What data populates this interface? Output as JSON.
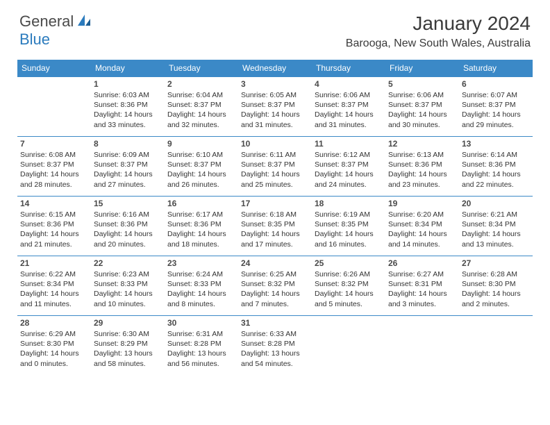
{
  "logo": {
    "general": "General",
    "blue": "Blue"
  },
  "title": "January 2024",
  "location": "Barooga, New South Wales, Australia",
  "header_bg": "#3b89c7",
  "header_fg": "#ffffff",
  "border_color": "#3b89c7",
  "daynum_color": "#4a4a4a",
  "text_color": "#333333",
  "weekdays": [
    "Sunday",
    "Monday",
    "Tuesday",
    "Wednesday",
    "Thursday",
    "Friday",
    "Saturday"
  ],
  "weeks": [
    [
      null,
      {
        "n": "1",
        "sr": "6:03 AM",
        "ss": "8:36 PM",
        "dl": "14 hours and 33 minutes."
      },
      {
        "n": "2",
        "sr": "6:04 AM",
        "ss": "8:37 PM",
        "dl": "14 hours and 32 minutes."
      },
      {
        "n": "3",
        "sr": "6:05 AM",
        "ss": "8:37 PM",
        "dl": "14 hours and 31 minutes."
      },
      {
        "n": "4",
        "sr": "6:06 AM",
        "ss": "8:37 PM",
        "dl": "14 hours and 31 minutes."
      },
      {
        "n": "5",
        "sr": "6:06 AM",
        "ss": "8:37 PM",
        "dl": "14 hours and 30 minutes."
      },
      {
        "n": "6",
        "sr": "6:07 AM",
        "ss": "8:37 PM",
        "dl": "14 hours and 29 minutes."
      }
    ],
    [
      {
        "n": "7",
        "sr": "6:08 AM",
        "ss": "8:37 PM",
        "dl": "14 hours and 28 minutes."
      },
      {
        "n": "8",
        "sr": "6:09 AM",
        "ss": "8:37 PM",
        "dl": "14 hours and 27 minutes."
      },
      {
        "n": "9",
        "sr": "6:10 AM",
        "ss": "8:37 PM",
        "dl": "14 hours and 26 minutes."
      },
      {
        "n": "10",
        "sr": "6:11 AM",
        "ss": "8:37 PM",
        "dl": "14 hours and 25 minutes."
      },
      {
        "n": "11",
        "sr": "6:12 AM",
        "ss": "8:37 PM",
        "dl": "14 hours and 24 minutes."
      },
      {
        "n": "12",
        "sr": "6:13 AM",
        "ss": "8:36 PM",
        "dl": "14 hours and 23 minutes."
      },
      {
        "n": "13",
        "sr": "6:14 AM",
        "ss": "8:36 PM",
        "dl": "14 hours and 22 minutes."
      }
    ],
    [
      {
        "n": "14",
        "sr": "6:15 AM",
        "ss": "8:36 PM",
        "dl": "14 hours and 21 minutes."
      },
      {
        "n": "15",
        "sr": "6:16 AM",
        "ss": "8:36 PM",
        "dl": "14 hours and 20 minutes."
      },
      {
        "n": "16",
        "sr": "6:17 AM",
        "ss": "8:36 PM",
        "dl": "14 hours and 18 minutes."
      },
      {
        "n": "17",
        "sr": "6:18 AM",
        "ss": "8:35 PM",
        "dl": "14 hours and 17 minutes."
      },
      {
        "n": "18",
        "sr": "6:19 AM",
        "ss": "8:35 PM",
        "dl": "14 hours and 16 minutes."
      },
      {
        "n": "19",
        "sr": "6:20 AM",
        "ss": "8:34 PM",
        "dl": "14 hours and 14 minutes."
      },
      {
        "n": "20",
        "sr": "6:21 AM",
        "ss": "8:34 PM",
        "dl": "14 hours and 13 minutes."
      }
    ],
    [
      {
        "n": "21",
        "sr": "6:22 AM",
        "ss": "8:34 PM",
        "dl": "14 hours and 11 minutes."
      },
      {
        "n": "22",
        "sr": "6:23 AM",
        "ss": "8:33 PM",
        "dl": "14 hours and 10 minutes."
      },
      {
        "n": "23",
        "sr": "6:24 AM",
        "ss": "8:33 PM",
        "dl": "14 hours and 8 minutes."
      },
      {
        "n": "24",
        "sr": "6:25 AM",
        "ss": "8:32 PM",
        "dl": "14 hours and 7 minutes."
      },
      {
        "n": "25",
        "sr": "6:26 AM",
        "ss": "8:32 PM",
        "dl": "14 hours and 5 minutes."
      },
      {
        "n": "26",
        "sr": "6:27 AM",
        "ss": "8:31 PM",
        "dl": "14 hours and 3 minutes."
      },
      {
        "n": "27",
        "sr": "6:28 AM",
        "ss": "8:30 PM",
        "dl": "14 hours and 2 minutes."
      }
    ],
    [
      {
        "n": "28",
        "sr": "6:29 AM",
        "ss": "8:30 PM",
        "dl": "14 hours and 0 minutes."
      },
      {
        "n": "29",
        "sr": "6:30 AM",
        "ss": "8:29 PM",
        "dl": "13 hours and 58 minutes."
      },
      {
        "n": "30",
        "sr": "6:31 AM",
        "ss": "8:28 PM",
        "dl": "13 hours and 56 minutes."
      },
      {
        "n": "31",
        "sr": "6:33 AM",
        "ss": "8:28 PM",
        "dl": "13 hours and 54 minutes."
      },
      null,
      null,
      null
    ]
  ],
  "labels": {
    "sunrise": "Sunrise:",
    "sunset": "Sunset:",
    "daylight": "Daylight:"
  }
}
